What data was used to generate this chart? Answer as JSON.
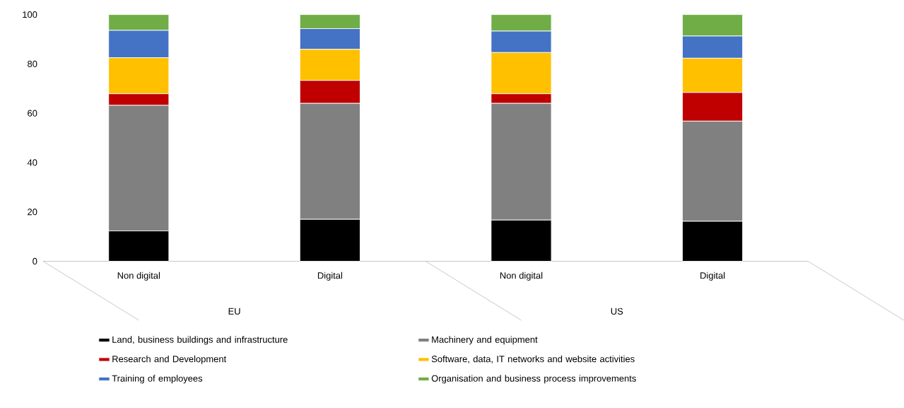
{
  "chart_data": {
    "type": "bar",
    "stacked": true,
    "categories": [
      "Non digital",
      "Digital",
      "Non digital",
      "Digital"
    ],
    "series": [
      {
        "name": "Land, business buildings and infrastructure",
        "color": "#000000",
        "values": [
          12.3,
          17.0,
          16.7,
          16.2
        ]
      },
      {
        "name": "Machinery and equipment",
        "color": "#808080",
        "values": [
          50.9,
          47.0,
          47.3,
          40.6
        ]
      },
      {
        "name": "Research and Development",
        "color": "#c00000",
        "values": [
          4.7,
          9.3,
          3.9,
          11.6
        ]
      },
      {
        "name": "Software, data, IT networks and website activities",
        "color": "#ffc000",
        "values": [
          14.6,
          12.6,
          16.7,
          13.9
        ]
      },
      {
        "name": "Training of employees",
        "color": "#4472c4",
        "values": [
          11.1,
          8.4,
          8.7,
          9.0
        ]
      },
      {
        "name": "Organisation and business process improvements",
        "color": "#70ad47",
        "values": [
          6.4,
          5.7,
          6.7,
          8.7
        ]
      }
    ],
    "ylim": [
      0,
      100
    ],
    "yticks": [
      0,
      20,
      40,
      60,
      80,
      100
    ],
    "legend": "bottom",
    "grid": false,
    "annotations": [
      "EU",
      "US"
    ]
  }
}
